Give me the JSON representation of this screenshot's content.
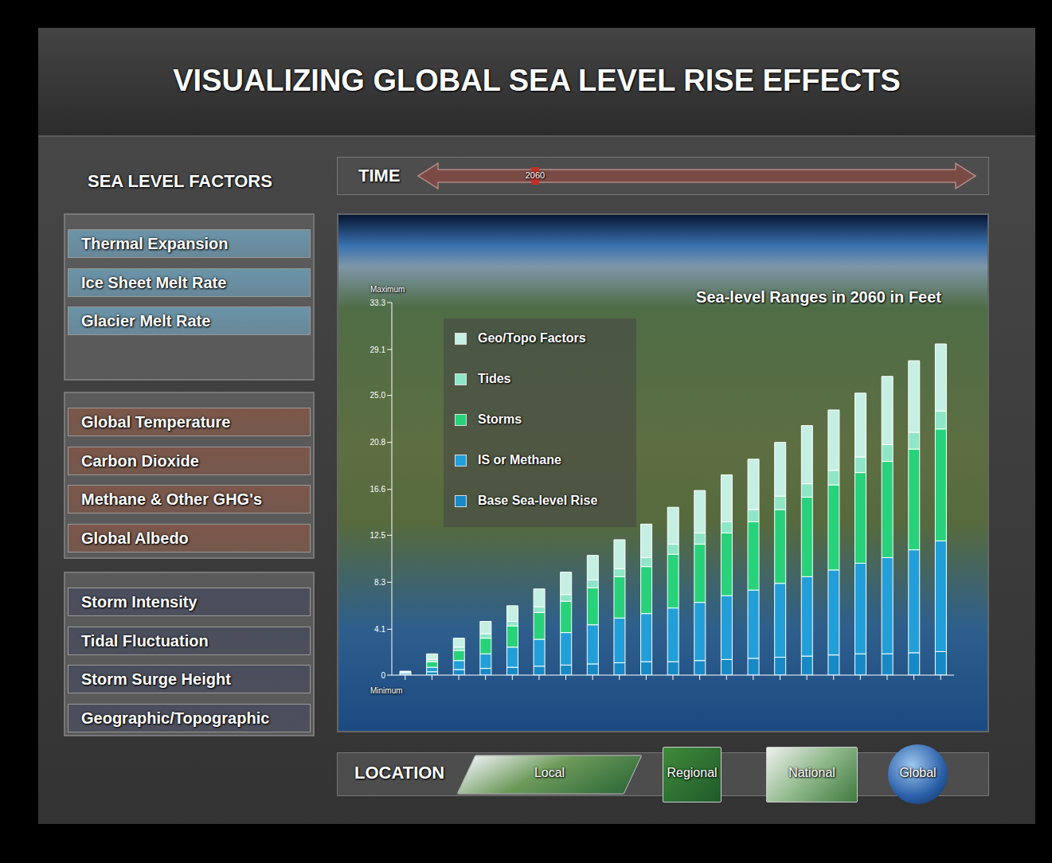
{
  "header": {
    "title": "VISUALIZING GLOBAL SEA LEVEL RISE EFFECTS"
  },
  "factors": {
    "title": "SEA LEVEL FACTORS",
    "groups": [
      [
        "Thermal Expansion",
        "Ice Sheet Melt Rate",
        "Glacier Melt Rate"
      ],
      [
        "Global Temperature",
        "Carbon Dioxide",
        "Methane & Other GHG's",
        "Global Albedo"
      ],
      [
        "Storm Intensity",
        "Tidal Fluctuation",
        "Storm Surge Height",
        "Geographic/Topographic"
      ]
    ]
  },
  "time": {
    "label": "TIME",
    "value": "2060"
  },
  "location": {
    "label": "LOCATION",
    "options": [
      "Local",
      "Regional",
      "National",
      "Global"
    ]
  },
  "chart_data": {
    "type": "bar",
    "title": "Sea-level Ranges in 2060 in Feet",
    "stacked": true,
    "grid": false,
    "legend": "top-left",
    "tick_labels": "y",
    "annotations": [
      "Maximum",
      "Minimum"
    ],
    "categories": [
      null,
      null,
      null,
      null,
      null,
      null,
      null,
      null,
      null,
      null,
      null,
      null,
      null,
      null,
      null,
      null,
      null,
      null,
      null,
      null,
      null
    ],
    "ylim": [
      0,
      33.3
    ],
    "yticks": [
      0,
      4.1,
      8.3,
      12.5,
      16.6,
      20.8,
      {
        "value": 25,
        "label": "25.0"
      },
      29.1,
      33.3
    ],
    "series": [
      {
        "name": "Geo/Topo Factors",
        "color": "#c6efe3",
        "values": [
          0.03,
          0.5,
          0.8,
          1.1,
          1.4,
          1.6,
          2.0,
          2.2,
          2.6,
          3.0,
          3.3,
          3.8,
          4.2,
          4.5,
          4.8,
          5.2,
          5.4,
          5.7,
          6.1,
          6.4,
          6.0
        ]
      },
      {
        "name": "Tides",
        "color": "#8fe6c6",
        "values": [
          0.02,
          0.2,
          0.3,
          0.4,
          0.4,
          0.5,
          0.6,
          0.7,
          0.7,
          0.8,
          0.9,
          1.0,
          1.0,
          1.1,
          1.2,
          1.2,
          1.3,
          1.4,
          1.5,
          1.5,
          1.6
        ]
      },
      {
        "name": "Storms",
        "color": "#27d27b",
        "values": [
          0.05,
          0.5,
          0.9,
          1.4,
          1.9,
          2.4,
          2.8,
          3.3,
          3.7,
          4.2,
          4.8,
          5.2,
          5.6,
          6.1,
          6.6,
          7.1,
          7.6,
          8.1,
          8.6,
          9.0,
          10.0
        ]
      },
      {
        "name": "IS or Methane",
        "color": "#229fd8",
        "values": [
          0.1,
          0.4,
          0.8,
          1.3,
          1.8,
          2.4,
          2.9,
          3.5,
          4.0,
          4.3,
          4.8,
          5.2,
          5.7,
          6.1,
          6.6,
          7.1,
          7.6,
          8.1,
          8.6,
          9.2,
          9.9
        ]
      },
      {
        "name": "Base Sea-level Rise",
        "color": "#178ac6",
        "values": [
          0.15,
          0.3,
          0.5,
          0.6,
          0.7,
          0.8,
          0.9,
          1.0,
          1.1,
          1.2,
          1.2,
          1.3,
          1.4,
          1.5,
          1.6,
          1.7,
          1.8,
          1.9,
          1.9,
          2.0,
          2.1
        ]
      }
    ]
  }
}
